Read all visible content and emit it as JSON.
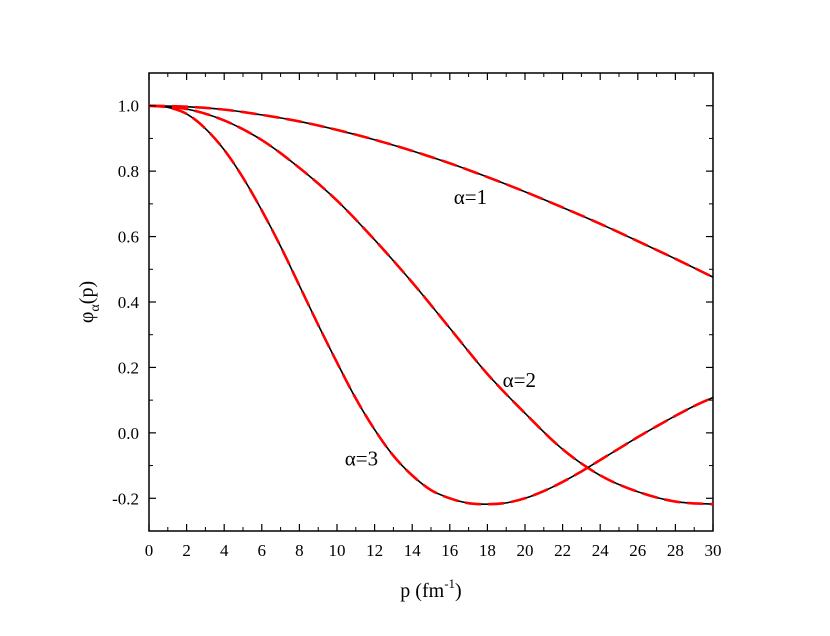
{
  "chart_data": {
    "type": "line",
    "title": "",
    "xlabel": {
      "base": "p (fm",
      "sup": "-1",
      "tail": ")"
    },
    "ylabel": {
      "base": "φ",
      "sub": "α",
      "tail": "(p)"
    },
    "xlim": [
      0,
      30
    ],
    "ylim": [
      -0.3,
      1.1
    ],
    "xticks": [
      0,
      2,
      4,
      6,
      8,
      10,
      12,
      14,
      16,
      18,
      20,
      22,
      24,
      26,
      28,
      30
    ],
    "yticks": [
      -0.2,
      0.0,
      0.2,
      0.4,
      0.6,
      0.8,
      1.0
    ],
    "ytick_labels": [
      "-0.2",
      "0.0",
      "0.2",
      "0.4",
      "0.6",
      "0.8",
      "1.0"
    ],
    "grid": false,
    "legend": "none",
    "colors": {
      "solid": "#000000",
      "dashed": "#ff0000"
    },
    "series": [
      {
        "x": [
          0,
          2,
          4,
          6,
          8,
          10,
          12,
          14,
          16,
          18,
          20,
          22,
          24,
          26,
          28,
          30
        ],
        "values": [
          1.0,
          0.997,
          0.988,
          0.972,
          0.952,
          0.926,
          0.896,
          0.862,
          0.824,
          0.782,
          0.737,
          0.689,
          0.639,
          0.586,
          0.532,
          0.476
        ]
      },
      {
        "x": [
          0,
          2,
          4,
          6,
          8,
          10,
          12,
          14,
          16,
          18,
          20,
          22,
          24,
          26,
          28,
          30
        ],
        "values": [
          1.0,
          0.99,
          0.955,
          0.895,
          0.81,
          0.71,
          0.59,
          0.46,
          0.32,
          0.18,
          0.06,
          -0.05,
          -0.13,
          -0.18,
          -0.21,
          -0.218
        ]
      },
      {
        "x": [
          0,
          1,
          2,
          3,
          4,
          5,
          6,
          7,
          8,
          9,
          10,
          11,
          12,
          13,
          14,
          15,
          16,
          17,
          18,
          19,
          20,
          21,
          22,
          23,
          24,
          25,
          26,
          27,
          28,
          29,
          30
        ],
        "values": [
          1.0,
          0.995,
          0.975,
          0.93,
          0.865,
          0.78,
          0.68,
          0.57,
          0.45,
          0.33,
          0.215,
          0.105,
          0.01,
          -0.07,
          -0.13,
          -0.175,
          -0.2,
          -0.215,
          -0.218,
          -0.214,
          -0.2,
          -0.178,
          -0.15,
          -0.118,
          -0.083,
          -0.048,
          -0.013,
          0.02,
          0.052,
          0.082,
          0.108
        ]
      }
    ],
    "annotations": [
      {
        "text": "α=1",
        "x": 17.1,
        "y": 0.7
      },
      {
        "text": "α=2",
        "x": 19.7,
        "y": 0.14
      },
      {
        "text": "α=3",
        "x": 11.3,
        "y": -0.1
      }
    ]
  }
}
